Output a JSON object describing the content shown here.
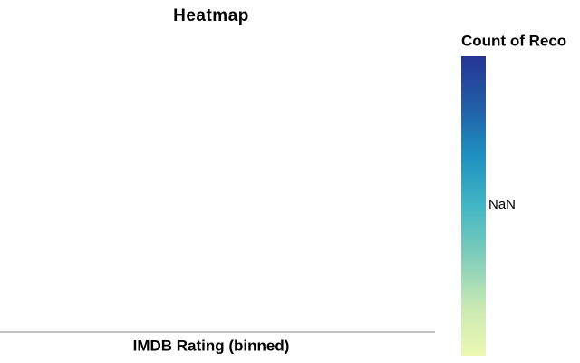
{
  "chart_data": {
    "type": "heatmap",
    "title": "Heatmap",
    "x_label": "IMDB Rating (binned)",
    "legend": {
      "title": "Count of Reco",
      "tick_labels": [
        "NaN"
      ],
      "colorscale": [
        "#edf8b1",
        "#c7e9b4",
        "#7fcdbb",
        "#41b6c4",
        "#1d91c0",
        "#225ea8",
        "#253494"
      ]
    }
  }
}
